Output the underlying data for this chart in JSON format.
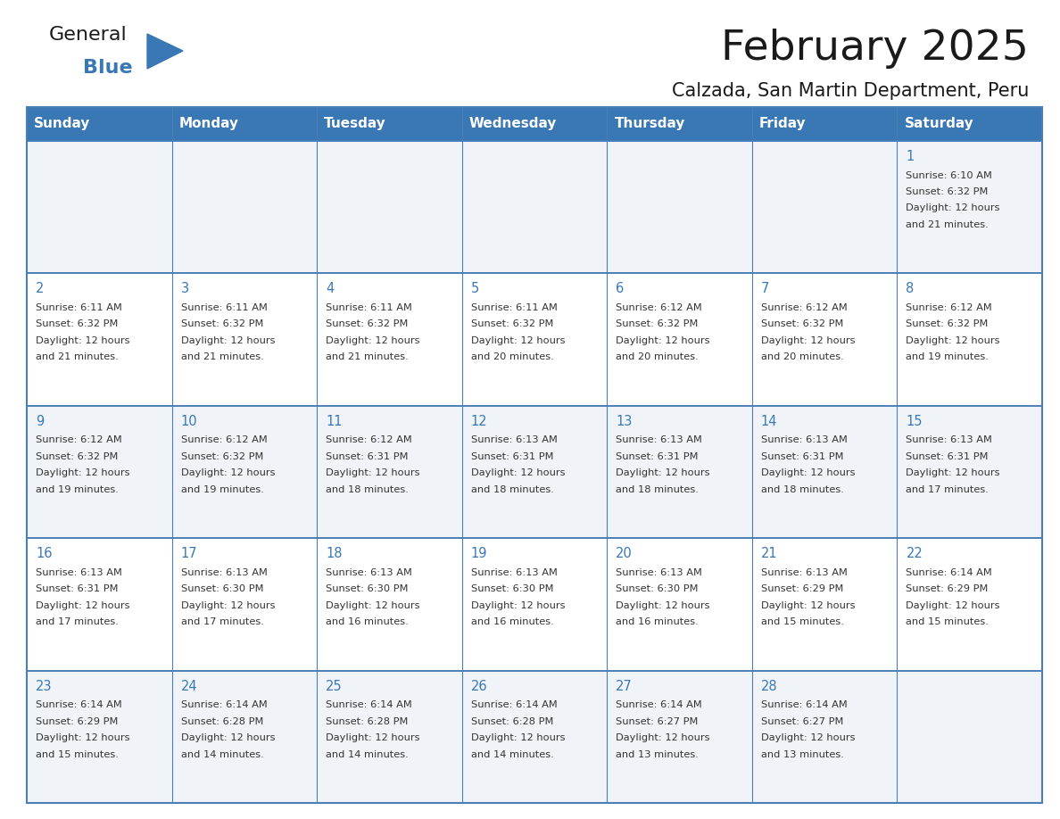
{
  "title": "February 2025",
  "subtitle": "Calzada, San Martin Department, Peru",
  "days_of_week": [
    "Sunday",
    "Monday",
    "Tuesday",
    "Wednesday",
    "Thursday",
    "Friday",
    "Saturday"
  ],
  "header_bg": "#3A78B5",
  "header_text": "#FFFFFF",
  "row_bg_odd": "#F0F4F8",
  "row_bg_even": "#FFFFFF",
  "border_color": "#4A7FB5",
  "title_color": "#1A1A1A",
  "subtitle_color": "#1A1A1A",
  "day_number_color": "#3A78B5",
  "cell_text_color": "#333333",
  "logo_text_color": "#1A1A1A",
  "logo_blue_color": "#3A78B5",
  "calendar_data": [
    [
      null,
      null,
      null,
      null,
      null,
      null,
      {
        "day": 1,
        "sunrise": "6:10 AM",
        "sunset": "6:32 PM",
        "daylight": "12 hours and 21 minutes."
      }
    ],
    [
      {
        "day": 2,
        "sunrise": "6:11 AM",
        "sunset": "6:32 PM",
        "daylight": "12 hours and 21 minutes."
      },
      {
        "day": 3,
        "sunrise": "6:11 AM",
        "sunset": "6:32 PM",
        "daylight": "12 hours and 21 minutes."
      },
      {
        "day": 4,
        "sunrise": "6:11 AM",
        "sunset": "6:32 PM",
        "daylight": "12 hours and 21 minutes."
      },
      {
        "day": 5,
        "sunrise": "6:11 AM",
        "sunset": "6:32 PM",
        "daylight": "12 hours and 20 minutes."
      },
      {
        "day": 6,
        "sunrise": "6:12 AM",
        "sunset": "6:32 PM",
        "daylight": "12 hours and 20 minutes."
      },
      {
        "day": 7,
        "sunrise": "6:12 AM",
        "sunset": "6:32 PM",
        "daylight": "12 hours and 20 minutes."
      },
      {
        "day": 8,
        "sunrise": "6:12 AM",
        "sunset": "6:32 PM",
        "daylight": "12 hours and 19 minutes."
      }
    ],
    [
      {
        "day": 9,
        "sunrise": "6:12 AM",
        "sunset": "6:32 PM",
        "daylight": "12 hours and 19 minutes."
      },
      {
        "day": 10,
        "sunrise": "6:12 AM",
        "sunset": "6:32 PM",
        "daylight": "12 hours and 19 minutes."
      },
      {
        "day": 11,
        "sunrise": "6:12 AM",
        "sunset": "6:31 PM",
        "daylight": "12 hours and 18 minutes."
      },
      {
        "day": 12,
        "sunrise": "6:13 AM",
        "sunset": "6:31 PM",
        "daylight": "12 hours and 18 minutes."
      },
      {
        "day": 13,
        "sunrise": "6:13 AM",
        "sunset": "6:31 PM",
        "daylight": "12 hours and 18 minutes."
      },
      {
        "day": 14,
        "sunrise": "6:13 AM",
        "sunset": "6:31 PM",
        "daylight": "12 hours and 18 minutes."
      },
      {
        "day": 15,
        "sunrise": "6:13 AM",
        "sunset": "6:31 PM",
        "daylight": "12 hours and 17 minutes."
      }
    ],
    [
      {
        "day": 16,
        "sunrise": "6:13 AM",
        "sunset": "6:31 PM",
        "daylight": "12 hours and 17 minutes."
      },
      {
        "day": 17,
        "sunrise": "6:13 AM",
        "sunset": "6:30 PM",
        "daylight": "12 hours and 17 minutes."
      },
      {
        "day": 18,
        "sunrise": "6:13 AM",
        "sunset": "6:30 PM",
        "daylight": "12 hours and 16 minutes."
      },
      {
        "day": 19,
        "sunrise": "6:13 AM",
        "sunset": "6:30 PM",
        "daylight": "12 hours and 16 minutes."
      },
      {
        "day": 20,
        "sunrise": "6:13 AM",
        "sunset": "6:30 PM",
        "daylight": "12 hours and 16 minutes."
      },
      {
        "day": 21,
        "sunrise": "6:13 AM",
        "sunset": "6:29 PM",
        "daylight": "12 hours and 15 minutes."
      },
      {
        "day": 22,
        "sunrise": "6:14 AM",
        "sunset": "6:29 PM",
        "daylight": "12 hours and 15 minutes."
      }
    ],
    [
      {
        "day": 23,
        "sunrise": "6:14 AM",
        "sunset": "6:29 PM",
        "daylight": "12 hours and 15 minutes."
      },
      {
        "day": 24,
        "sunrise": "6:14 AM",
        "sunset": "6:28 PM",
        "daylight": "12 hours and 14 minutes."
      },
      {
        "day": 25,
        "sunrise": "6:14 AM",
        "sunset": "6:28 PM",
        "daylight": "12 hours and 14 minutes."
      },
      {
        "day": 26,
        "sunrise": "6:14 AM",
        "sunset": "6:28 PM",
        "daylight": "12 hours and 14 minutes."
      },
      {
        "day": 27,
        "sunrise": "6:14 AM",
        "sunset": "6:27 PM",
        "daylight": "12 hours and 13 minutes."
      },
      {
        "day": 28,
        "sunrise": "6:14 AM",
        "sunset": "6:27 PM",
        "daylight": "12 hours and 13 minutes."
      },
      null
    ]
  ]
}
